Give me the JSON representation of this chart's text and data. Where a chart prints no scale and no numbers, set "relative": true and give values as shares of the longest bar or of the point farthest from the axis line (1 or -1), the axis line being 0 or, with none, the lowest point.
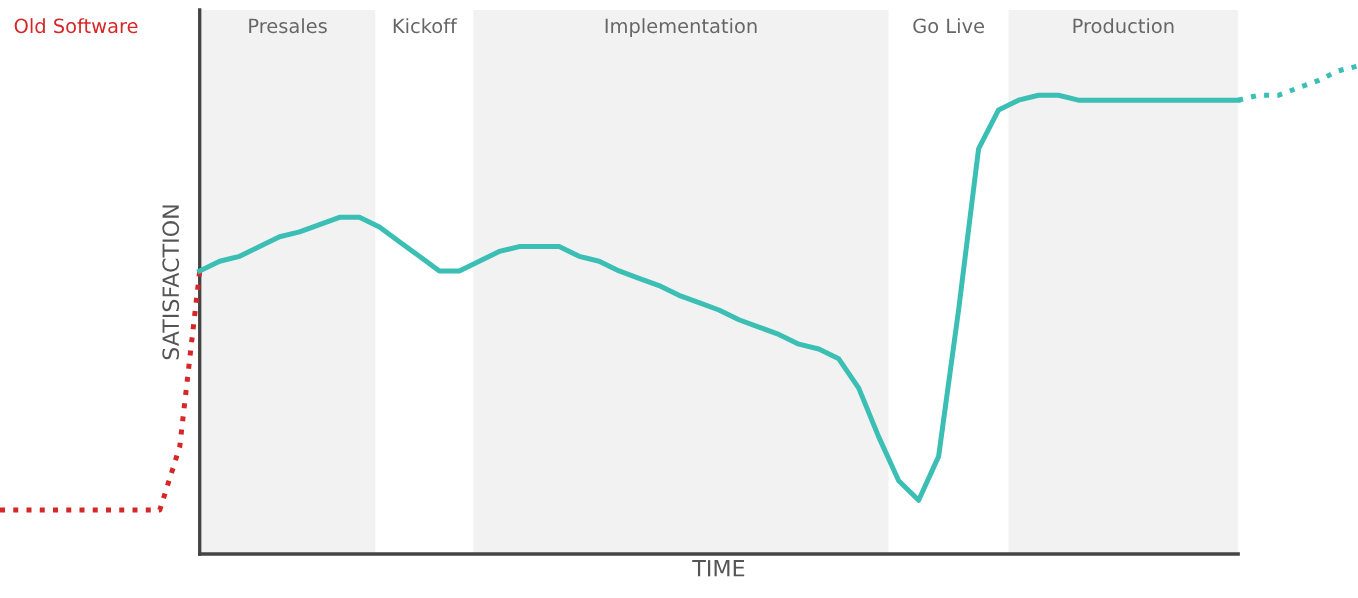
{
  "chart_data": {
    "type": "line",
    "relative": true,
    "xlabel": "TIME",
    "ylabel": "SATISFACTION",
    "categories": [
      null,
      null,
      null,
      null,
      null,
      null,
      null,
      null,
      null,
      null,
      null,
      null,
      null,
      null,
      null,
      null,
      null,
      null,
      null,
      null,
      null,
      null,
      null,
      null,
      null,
      null,
      null,
      null,
      null,
      null,
      null,
      null,
      null,
      null,
      null,
      null,
      null,
      null,
      null,
      null,
      null,
      null,
      null,
      null,
      null,
      null,
      null,
      null,
      null,
      null,
      null,
      null,
      null,
      null,
      null,
      null,
      null,
      null,
      null,
      null,
      null,
      null,
      null,
      null,
      null,
      null,
      null,
      null,
      null
    ],
    "series": [
      {
        "name": "Old Software",
        "color": "#d62728",
        "line_style": "dotted",
        "values": [
          0.09,
          0.09,
          0.09,
          0.09,
          0.09,
          0.09,
          0.09,
          0.09,
          0.09,
          0.22,
          0.58,
          null,
          null,
          null,
          null,
          null,
          null,
          null,
          null,
          null,
          null,
          null,
          null,
          null,
          null,
          null,
          null,
          null,
          null,
          null,
          null,
          null,
          null,
          null,
          null,
          null,
          null,
          null,
          null,
          null,
          null,
          null,
          null,
          null,
          null,
          null,
          null,
          null,
          null,
          null,
          null,
          null,
          null,
          null,
          null,
          null,
          null,
          null,
          null,
          null,
          null,
          null,
          null,
          null,
          null,
          null,
          null,
          null,
          null
        ]
      },
      {
        "color": "#3bbfb4",
        "line_style": "solid",
        "values": [
          null,
          null,
          null,
          null,
          null,
          null,
          null,
          null,
          null,
          null,
          0.58,
          0.6,
          0.61,
          0.63,
          0.65,
          0.66,
          0.675,
          0.69,
          0.69,
          0.67,
          0.64,
          0.61,
          0.58,
          0.58,
          0.6,
          0.62,
          0.63,
          0.63,
          0.63,
          0.61,
          0.6,
          0.58,
          0.565,
          0.55,
          0.53,
          0.515,
          0.5,
          0.48,
          0.465,
          0.45,
          0.43,
          0.42,
          0.4,
          0.34,
          0.24,
          0.15,
          0.11,
          0.2,
          0.5,
          0.83,
          0.91,
          0.93,
          0.94,
          0.94,
          0.93,
          0.93,
          0.93,
          0.93,
          0.93,
          0.93,
          0.93,
          0.93,
          0.93,
          null,
          null,
          null,
          null,
          null,
          null
        ]
      },
      {
        "color": "#3bbfb4",
        "line_style": "dotted",
        "values": [
          null,
          null,
          null,
          null,
          null,
          null,
          null,
          null,
          null,
          null,
          null,
          null,
          null,
          null,
          null,
          null,
          null,
          null,
          null,
          null,
          null,
          null,
          null,
          null,
          null,
          null,
          null,
          null,
          null,
          null,
          null,
          null,
          null,
          null,
          null,
          null,
          null,
          null,
          null,
          null,
          null,
          null,
          null,
          null,
          null,
          null,
          null,
          null,
          null,
          null,
          null,
          null,
          null,
          null,
          null,
          null,
          null,
          null,
          null,
          null,
          null,
          null,
          0.93,
          0.94,
          0.94,
          0.955,
          0.97,
          0.99,
          1
        ]
      }
    ],
    "annotations": [
      "Presales",
      "Kickoff",
      "Implementation",
      "Go Live",
      "Production"
    ]
  }
}
